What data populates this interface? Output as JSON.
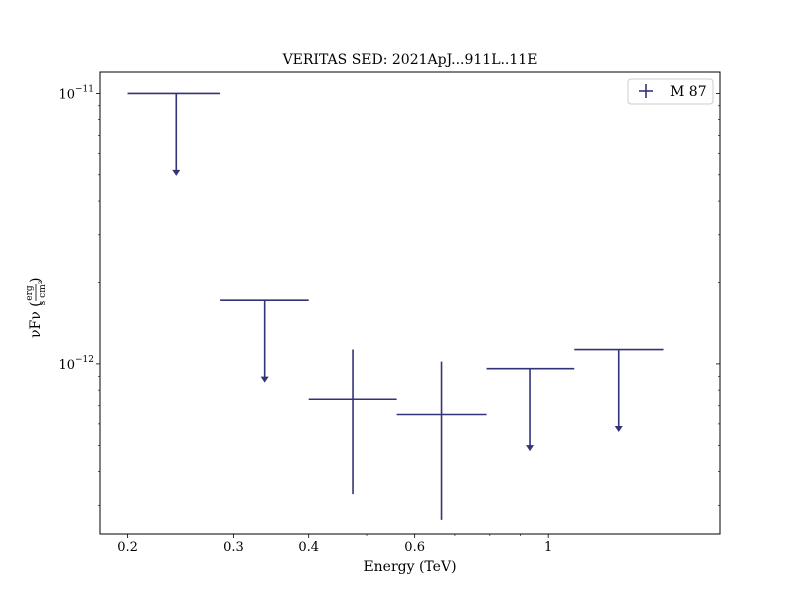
{
  "chart_data": {
    "type": "scatter",
    "title": "VERITAS SED: 2021ApJ...911L..11E",
    "xlabel": "Energy (TeV)",
    "ylabel_main": "νFν (",
    "ylabel_frac_num": "erg",
    "ylabel_frac_den": "s cm²",
    "ylabel_close": ")",
    "x_scale": "log",
    "y_scale": "log",
    "xlim": [
      0.18,
      1.93
    ],
    "ylim": [
      2.35e-13,
      1.2e-11
    ],
    "x_tick_labels": [
      {
        "value": 0.2,
        "label": "0.2"
      },
      {
        "value": 0.3,
        "label": "0.3"
      },
      {
        "value": 0.4,
        "label": "0.4"
      },
      {
        "value": 0.6,
        "label": "0.6"
      },
      {
        "value": 1.0,
        "label": "1"
      }
    ],
    "y_tick_labels": [
      {
        "value": 1e-11,
        "base": "10",
        "exp": "−11"
      },
      {
        "value": 1e-12,
        "base": "10",
        "exp": "−12"
      }
    ],
    "legend": {
      "location": "top-right",
      "entries": [
        {
          "label": "M 87",
          "color": "#333377"
        }
      ]
    },
    "series": [
      {
        "name": "M 87",
        "color": "#333377",
        "points": [
          {
            "x": 0.241,
            "xlo": 0.2,
            "xhi": 0.285,
            "y": 1e-11,
            "upper_limit": true
          },
          {
            "x": 0.338,
            "xlo": 0.285,
            "xhi": 0.4,
            "y": 1.72e-12,
            "upper_limit": true
          },
          {
            "x": 0.474,
            "xlo": 0.4,
            "xhi": 0.56,
            "y": 7.4e-13,
            "ylo": 3.3e-13,
            "yhi": 1.13e-12,
            "upper_limit": false
          },
          {
            "x": 0.665,
            "xlo": 0.56,
            "xhi": 0.79,
            "y": 6.5e-13,
            "ylo": 2.65e-13,
            "yhi": 1.02e-12,
            "upper_limit": false
          },
          {
            "x": 0.933,
            "xlo": 0.79,
            "xhi": 1.105,
            "y": 9.6e-13,
            "upper_limit": true
          },
          {
            "x": 1.31,
            "xlo": 1.105,
            "xhi": 1.555,
            "y": 1.13e-12,
            "upper_limit": true
          }
        ]
      }
    ]
  }
}
